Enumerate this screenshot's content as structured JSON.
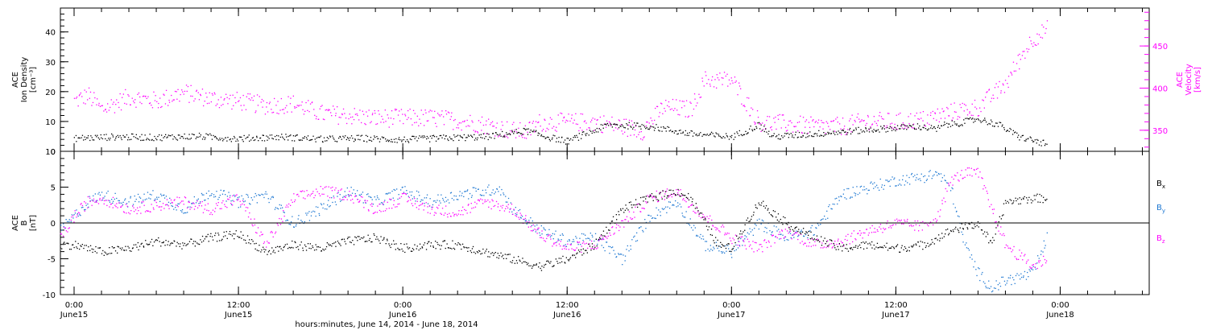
{
  "chart_data": [
    {
      "type": "scatter",
      "panel": "top",
      "ylabel_lines": [
        "ACE",
        "Ion Density",
        "[cm⁻³]"
      ],
      "y2label_lines": [
        "ACE",
        "Velocity",
        "[km/s]"
      ],
      "ylim": [
        0,
        48
      ],
      "y_ticks": [
        0,
        10,
        20,
        30,
        40
      ],
      "y2lim": [
        325,
        495
      ],
      "y2_ticks": [
        350,
        400,
        450
      ],
      "series": [
        {
          "name": "",
          "axis": "left",
          "color": "#000000",
          "x": [
            0.0,
            3.0,
            6.0,
            9.0,
            12.0,
            15.0,
            18.0,
            21.0,
            24.0,
            27.0,
            30.0,
            33.0,
            34.5,
            36.0,
            39.0,
            42.0,
            45.0,
            48.0,
            50.0,
            51.0,
            54.0,
            57.0,
            60.0,
            61.5,
            63.0,
            63.5,
            64.5,
            66.0,
            67.5,
            69.0,
            71.0
          ],
          "y": [
            4.5,
            5.0,
            4.8,
            5.2,
            4.4,
            5.0,
            4.2,
            4.5,
            4.0,
            4.6,
            5.0,
            7.0,
            5.0,
            3.5,
            9.0,
            8.5,
            6.0,
            5.0,
            9.0,
            5.0,
            6.0,
            7.0,
            8.0,
            8.5,
            7.5,
            9.0,
            9.5,
            11.0,
            9.0,
            5.0,
            2.5
          ]
        },
        {
          "name": "",
          "axis": "right",
          "color": "#ff00ff",
          "x": [
            0.0,
            1.0,
            2.0,
            4.0,
            6.0,
            8.0,
            10.0,
            12.0,
            14.0,
            16.0,
            18.0,
            20.0,
            22.0,
            24.0,
            26.0,
            28.0,
            30.0,
            32.0,
            33.0,
            34.0,
            36.0,
            38.0,
            40.0,
            41.5,
            43.0,
            45.0,
            46.0,
            48.0,
            50.0,
            52.0,
            54.0,
            56.0,
            58.0,
            60.0,
            62.0,
            64.0,
            66.0,
            68.0,
            69.0,
            70.0,
            71.0
          ],
          "y": [
            385,
            392,
            375,
            390,
            385,
            395,
            388,
            385,
            380,
            382,
            370,
            368,
            365,
            365,
            365,
            362,
            357,
            350,
            348,
            360,
            360,
            360,
            355,
            350,
            378,
            375,
            410,
            410,
            360,
            358,
            355,
            355,
            362,
            360,
            363,
            372,
            378,
            405,
            435,
            460,
            470
          ]
        }
      ]
    },
    {
      "type": "scatter",
      "panel": "bottom",
      "ylabel_lines": [
        "ACE",
        "B",
        "[nT]"
      ],
      "ylim": [
        -10,
        10
      ],
      "y_ticks": [
        -10,
        -5,
        0,
        5,
        10
      ],
      "xlabel": "hours:minutes, June 14, 2014 - June 18, 2014",
      "x_ticks": [
        {
          "h": 0,
          "time": "0:00",
          "date": "June15"
        },
        {
          "h": 12,
          "time": "12:00",
          "date": "June15"
        },
        {
          "h": 24,
          "time": "0:00",
          "date": "June16"
        },
        {
          "h": 36,
          "time": "12:00",
          "date": "June16"
        },
        {
          "h": 48,
          "time": "0:00",
          "date": "June17"
        },
        {
          "h": 60,
          "time": "12:00",
          "date": "June17"
        },
        {
          "h": 72,
          "time": "0:00",
          "date": "June18"
        }
      ],
      "xlim": [
        -1,
        78.5
      ],
      "series": [
        {
          "name": "Bx",
          "label_main": "B",
          "label_sub": "x",
          "color": "#000000",
          "x": [
            -1.0,
            0.0,
            2.0,
            4.0,
            6.0,
            8.0,
            10.0,
            12.0,
            14.0,
            16.0,
            18.0,
            20.0,
            22.0,
            24.0,
            26.0,
            28.0,
            30.0,
            32.0,
            34.0,
            35.0,
            36.0,
            38.0,
            40.0,
            42.0,
            44.0,
            45.0,
            47.0,
            48.0,
            49.0,
            50.0,
            52.0,
            54.0,
            56.0,
            58.0,
            60.0,
            62.0,
            64.0,
            66.0,
            67.0,
            68.0,
            70.0,
            71.0
          ],
          "y": [
            -3.0,
            -3.0,
            -4.0,
            -3.5,
            -2.5,
            -3.0,
            -2.0,
            -1.5,
            -4.0,
            -3.0,
            -3.5,
            -2.5,
            -2.0,
            -3.5,
            -3.0,
            -3.0,
            -4.0,
            -5.0,
            -6.0,
            -5.5,
            -5.0,
            -3.0,
            2.0,
            3.5,
            4.5,
            3.5,
            -3.0,
            -3.5,
            0.0,
            3.0,
            0.0,
            -2.0,
            -3.5,
            -3.0,
            -3.5,
            -3.0,
            -1.0,
            0.0,
            -3.0,
            3.0,
            3.5,
            3.5
          ]
        },
        {
          "name": "By",
          "label_main": "B",
          "label_sub": "y",
          "color": "#1e78d2",
          "x": [
            -1.0,
            0.0,
            1.0,
            2.0,
            4.0,
            6.0,
            8.0,
            10.0,
            12.0,
            14.0,
            16.0,
            18.0,
            20.0,
            22.0,
            24.0,
            26.0,
            28.0,
            30.0,
            31.0,
            32.0,
            34.0,
            36.0,
            38.0,
            40.0,
            42.0,
            44.0,
            46.0,
            48.0,
            50.0,
            52.0,
            54.0,
            56.0,
            58.0,
            60.0,
            62.0,
            63.0,
            64.0,
            65.0,
            66.0,
            67.0,
            68.0,
            70.0,
            71.0
          ],
          "y": [
            -1.0,
            1.0,
            3.0,
            4.0,
            3.0,
            4.0,
            2.0,
            4.5,
            3.0,
            4.0,
            0.0,
            2.0,
            4.5,
            3.0,
            4.5,
            3.0,
            4.0,
            4.5,
            5.0,
            2.0,
            -1.0,
            -2.5,
            -2.0,
            -5.0,
            1.0,
            3.0,
            -3.0,
            -4.0,
            0.0,
            -2.0,
            -1.0,
            4.0,
            5.0,
            6.0,
            6.5,
            7.0,
            5.0,
            -3.0,
            -7.0,
            -9.0,
            -8.0,
            -7.0,
            -2.0
          ]
        },
        {
          "name": "Bz",
          "label_main": "B",
          "label_sub": "z",
          "color": "#ff00ff",
          "x": [
            -1.0,
            0.0,
            1.0,
            2.0,
            4.0,
            6.0,
            8.0,
            10.0,
            12.0,
            14.0,
            16.0,
            18.0,
            20.0,
            22.0,
            24.0,
            26.0,
            28.0,
            30.0,
            32.0,
            34.0,
            36.0,
            38.0,
            40.0,
            42.0,
            44.0,
            46.0,
            48.0,
            50.0,
            52.0,
            54.0,
            56.0,
            58.0,
            60.0,
            62.0,
            63.0,
            64.0,
            65.0,
            66.0,
            68.0,
            70.0,
            71.0
          ],
          "y": [
            -2.0,
            1.0,
            3.0,
            3.5,
            2.0,
            2.5,
            3.0,
            2.0,
            3.5,
            -3.0,
            3.5,
            4.5,
            4.0,
            2.0,
            3.5,
            2.0,
            1.5,
            3.0,
            2.0,
            -1.5,
            -3.5,
            -3.0,
            0.0,
            3.5,
            4.5,
            1.0,
            -2.0,
            -3.5,
            -1.0,
            -3.0,
            -2.5,
            -1.0,
            0.0,
            -0.5,
            1.0,
            6.0,
            7.0,
            7.0,
            -3.0,
            -6.0,
            -5.0
          ]
        }
      ]
    }
  ]
}
